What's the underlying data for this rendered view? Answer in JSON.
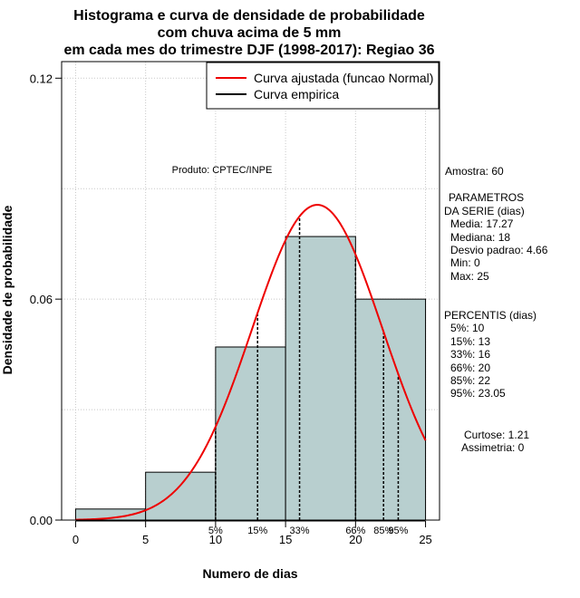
{
  "chart_data": {
    "type": "bar",
    "title": [
      "Histograma e curva de densidade de probabilidade",
      "com chuva acima de 5 mm",
      "em cada mes do trimestre DJF (1998-2017): Regiao 36"
    ],
    "xlabel": "Numero de dias",
    "ylabel": "Densidade de probabilidade",
    "xlim": [
      -1,
      26
    ],
    "ylim": [
      0,
      0.1245
    ],
    "xticks": [
      0,
      5,
      10,
      15,
      20,
      25
    ],
    "yticks": [
      0.0,
      0.06,
      0.12
    ],
    "ytick_labels": [
      "0.00",
      "0.06",
      "0.12"
    ],
    "bins": [
      {
        "from": 0,
        "to": 5,
        "density": 0.003
      },
      {
        "from": 5,
        "to": 10,
        "density": 0.013
      },
      {
        "from": 10,
        "to": 15,
        "density": 0.047
      },
      {
        "from": 15,
        "to": 20,
        "density": 0.077
      },
      {
        "from": 20,
        "to": 25,
        "density": 0.06
      }
    ],
    "bar_color": "#b8cfcf",
    "normal_curve": {
      "name": "Curva ajustada (funcao Normal)",
      "mean": 17.27,
      "sd": 4.66,
      "color": "#ee0000"
    },
    "empirical_curve": {
      "name": "Curva empirica",
      "color": "#000000"
    },
    "percentile_markers": [
      {
        "label": "5%",
        "x": 10
      },
      {
        "label": "15%",
        "x": 13
      },
      {
        "label": "33%",
        "x": 16
      },
      {
        "label": "66%",
        "x": 20
      },
      {
        "label": "85%",
        "x": 22
      },
      {
        "label": "95%",
        "x": 23.05
      }
    ],
    "grid": true,
    "legend_position": "top-right",
    "annotations": {
      "product": "Produto: CPTEC/INPE",
      "sample": "Amostra: 60",
      "params_title_1": "PARAMETROS",
      "params_title_2": "DA SERIE (dias)",
      "params": [
        "Media: 17.27",
        "Mediana: 18",
        "Desvio padrao: 4.66",
        "Min: 0",
        "Max: 25"
      ],
      "percentiles_title": "PERCENTIS (dias)",
      "percentiles": [
        "5%: 10",
        "15%: 13",
        "33%: 16",
        "66%: 20",
        "85%: 22",
        "95%: 23.05"
      ],
      "kurtosis": "Curtose: 1.21",
      "skewness": "Assimetria: 0"
    }
  }
}
